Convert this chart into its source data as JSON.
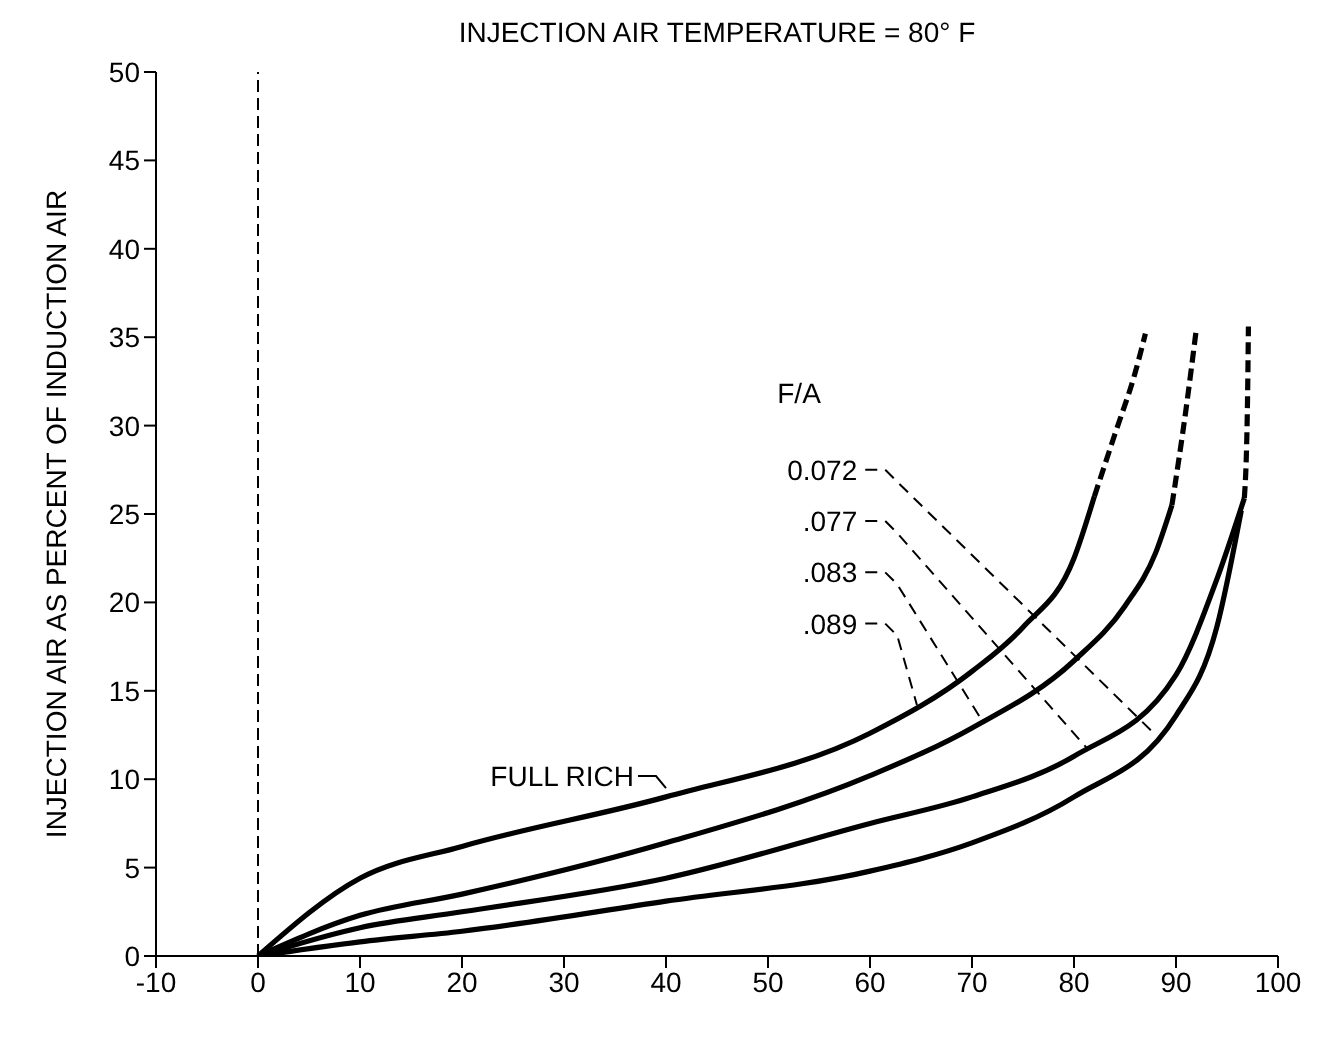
{
  "chart_data": {
    "type": "line",
    "title": "INJECTION AIR TEMPERATURE = 80° F",
    "ylabel": "INJECTION AIR AS PERCENT OF INDUCTION AIR",
    "xlim": [
      -10,
      100
    ],
    "xticks": [
      -10,
      0,
      10,
      20,
      30,
      40,
      50,
      60,
      70,
      80,
      90,
      100
    ],
    "ylim": [
      0,
      50
    ],
    "yticks": [
      0,
      5,
      10,
      15,
      20,
      25,
      30,
      35,
      40,
      45,
      50
    ],
    "grid": false,
    "ref_lines": [
      {
        "axis": "x",
        "value": 0,
        "color": "#000000",
        "line_style": "dashed"
      }
    ],
    "annotations": [
      "F/A",
      {
        "text": "0.072",
        "x": 88,
        "y": 12.5
      },
      {
        "text": ".077",
        "x": 81.2,
        "y": 11.8
      },
      {
        "text": ".083",
        "x": 71,
        "y": 13.3
      },
      {
        "text": ".089",
        "x": 64.6,
        "y": 14.2
      },
      {
        "text": "FULL RICH",
        "x": 40,
        "y": 9.5
      }
    ],
    "series": [
      {
        "color": "#000000",
        "line_style": "solid",
        "x": [
          0,
          10,
          20,
          40,
          60,
          70,
          75,
          80,
          82
        ],
        "values": [
          0,
          4.4,
          6.2,
          9.0,
          12.6,
          16.1,
          18.6,
          22.5,
          26
        ]
      },
      {
        "color": "#000000",
        "line_style": "dashed",
        "x": [
          82,
          84,
          86,
          87
        ],
        "values": [
          26,
          29.5,
          33,
          35.2
        ]
      },
      {
        "color": "#000000",
        "line_style": "solid",
        "x": [
          0,
          10,
          20,
          40,
          60,
          70,
          80,
          85,
          88,
          89.6
        ],
        "values": [
          0,
          2.3,
          3.5,
          6.4,
          10.2,
          12.9,
          16.7,
          19.8,
          22.8,
          25.5
        ]
      },
      {
        "color": "#000000",
        "line_style": "dashed",
        "x": [
          89.6,
          91,
          92
        ],
        "values": [
          25.5,
          31,
          35.5
        ]
      },
      {
        "color": "#000000",
        "line_style": "solid",
        "x": [
          0,
          10,
          20,
          40,
          60,
          70,
          80,
          90,
          94,
          96.7
        ],
        "values": [
          0,
          1.6,
          2.5,
          4.4,
          7.5,
          9.0,
          11.3,
          15.9,
          21.3,
          25.9
        ]
      },
      {
        "color": "#000000",
        "line_style": "dashed",
        "x": [
          96.7,
          97.0,
          97.1
        ],
        "values": [
          25.9,
          31,
          35.6
        ]
      },
      {
        "color": "#000000",
        "line_style": "solid",
        "x": [
          0,
          10,
          20,
          40,
          60,
          70,
          80,
          90,
          94,
          96.4
        ],
        "values": [
          0,
          0.8,
          1.4,
          3.1,
          4.8,
          6.4,
          9.0,
          13.6,
          18.6,
          25.2
        ]
      }
    ]
  }
}
